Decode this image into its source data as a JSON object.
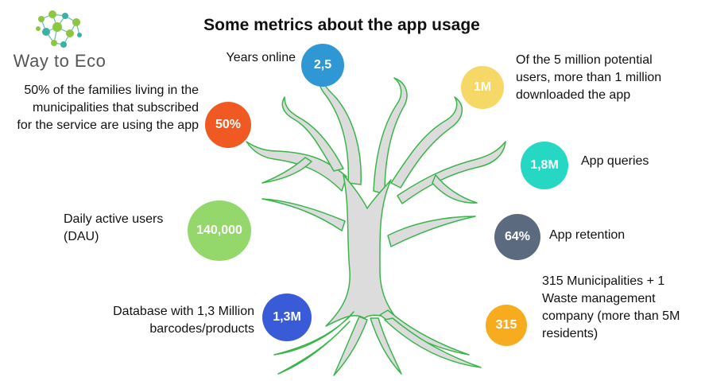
{
  "logo": {
    "text": "Way to Eco",
    "colors": [
      "#8dc63f",
      "#3bb0a6"
    ]
  },
  "title": "Some metrics about the app usage",
  "metrics": [
    {
      "id": "years",
      "value": "2,5",
      "label": "Years online",
      "color": "#2f97d3"
    },
    {
      "id": "users",
      "value": "1M",
      "label": "Of the 5 million potential users, more than 1 million downloaded the app",
      "color": "#f6d867"
    },
    {
      "id": "families",
      "value": "50%",
      "label": "50% of the families living in the municipalities that subscribed for the service are using the app",
      "color": "#f05a22"
    },
    {
      "id": "queries",
      "value": "1,8M",
      "label": "App queries",
      "color": "#26d7c4"
    },
    {
      "id": "dau",
      "value": "140,000",
      "label": "Daily active users (DAU)",
      "color": "#94d86b"
    },
    {
      "id": "retention",
      "value": "64%",
      "label": "App retention",
      "color": "#5c6a80"
    },
    {
      "id": "database",
      "value": "1,3M",
      "label": "Database with 1,3 Million barcodes/products",
      "color": "#3a5bd8"
    },
    {
      "id": "municipalities",
      "value": "315",
      "label": "315 Municipalities + 1 Waste management company (more than 5M residents)",
      "color": "#f6ac1e"
    }
  ],
  "tree": {
    "fill": "#dcdcdc",
    "stroke": "#39b54a"
  }
}
